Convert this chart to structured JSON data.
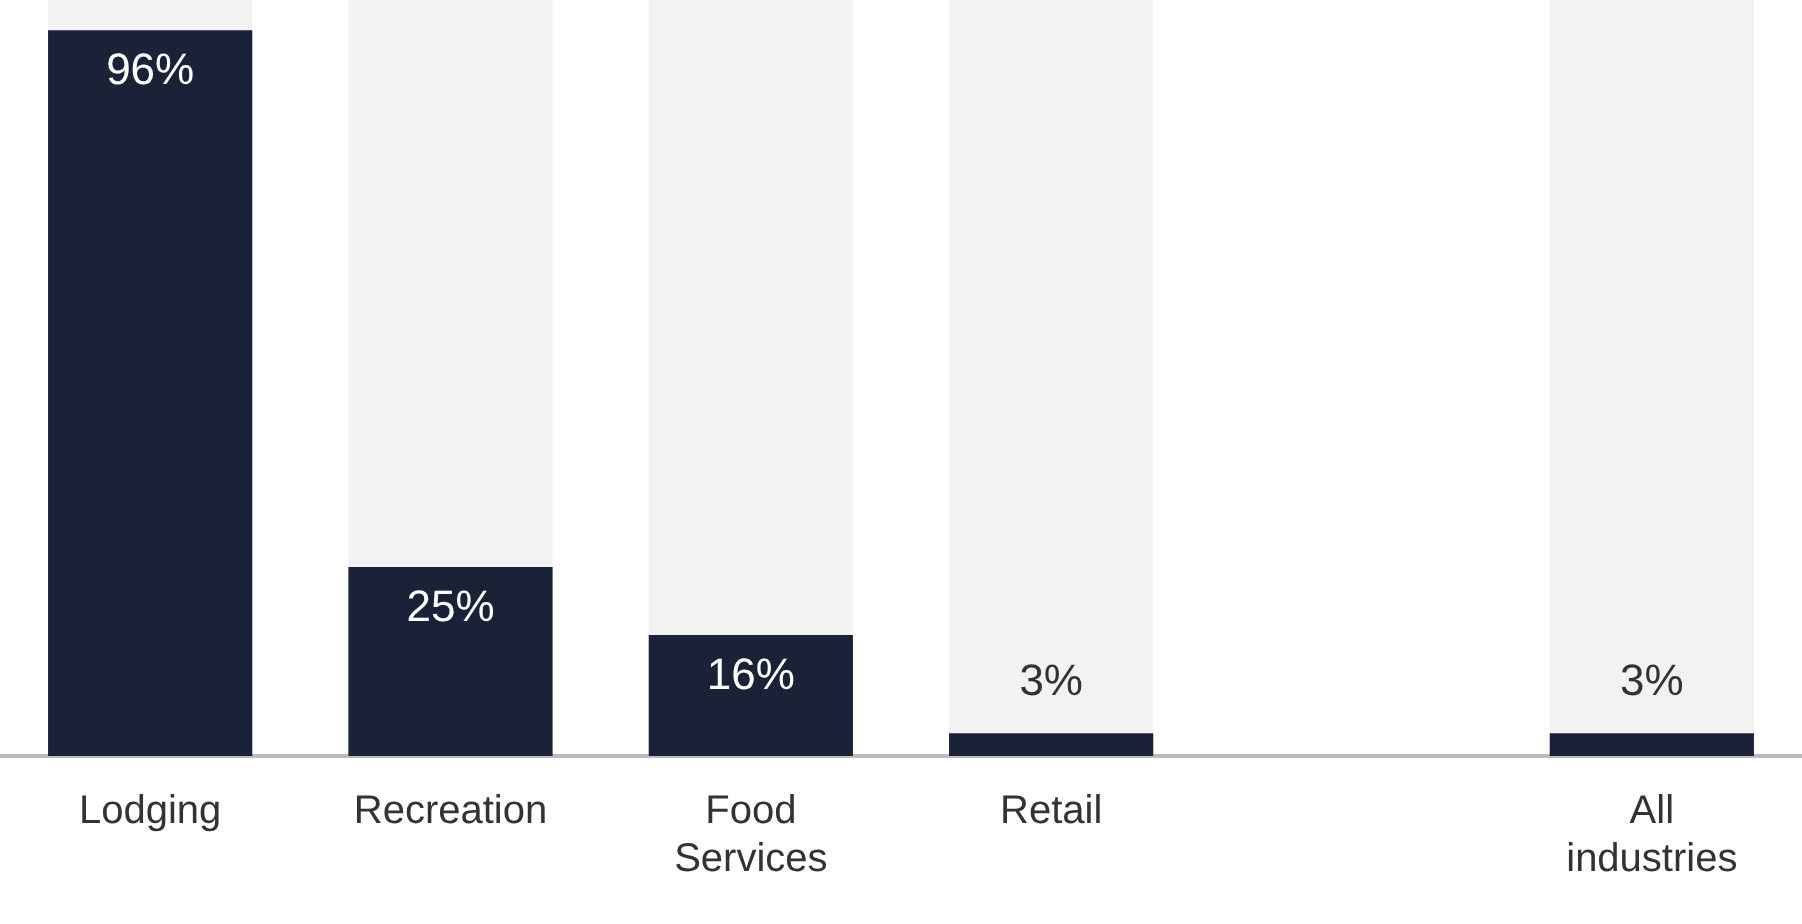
{
  "chart_data": {
    "type": "bar",
    "stacked": true,
    "categories": [
      "Lodging",
      "Recreation",
      "Food Services",
      "Retail",
      null,
      "All industries"
    ],
    "series": [
      {
        "color": "#1a2238",
        "values": [
          96,
          25,
          16,
          3,
          null,
          3
        ],
        "value_labels": [
          "96%",
          "25%",
          "16%",
          "3%",
          null,
          "3%"
        ]
      },
      {
        "color": "#f2f2f2",
        "values": [
          4,
          75,
          84,
          97,
          null,
          97
        ]
      }
    ],
    "ylim": [
      0,
      100
    ],
    "tick_labels": "x",
    "grid": false,
    "legend": false
  }
}
